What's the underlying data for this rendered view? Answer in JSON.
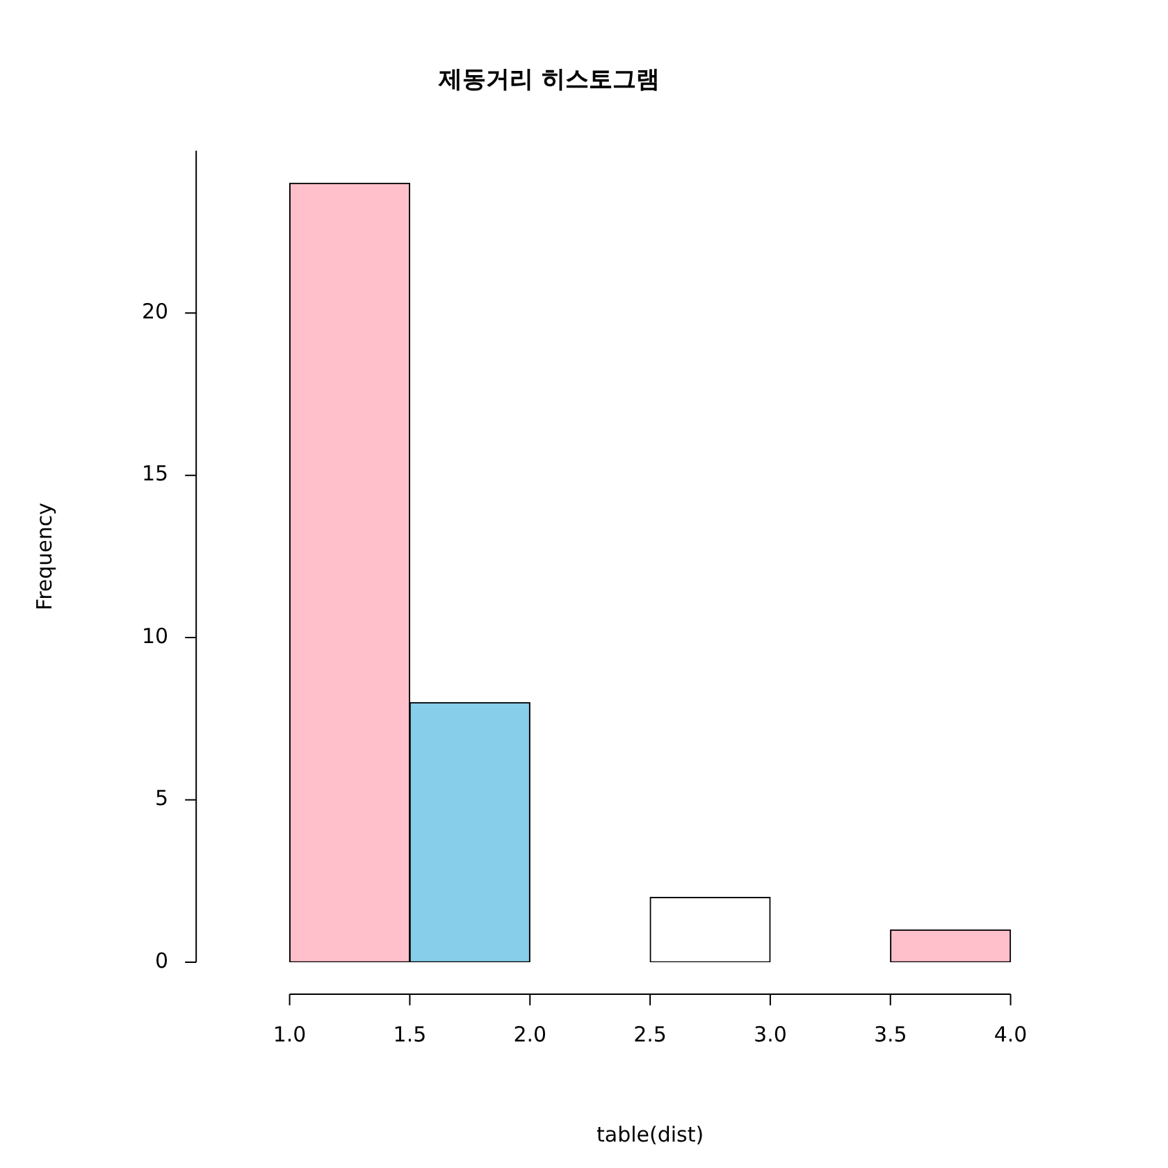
{
  "chart_data": {
    "type": "histogram",
    "title": "제동거리 히스토그램",
    "xlabel": "table(dist)",
    "ylabel": "Frequency",
    "bins": [
      1.0,
      1.5,
      2.0,
      2.5,
      3.0,
      3.5,
      4.0
    ],
    "values": [
      24,
      8,
      0,
      2,
      0,
      1
    ],
    "colors": [
      "#ffc0cb",
      "#87ceeb",
      "#ffffff",
      "#ffffff",
      "#ffffff",
      "#ffc0cb"
    ],
    "xlim": [
      1,
      4
    ],
    "ylim": [
      0,
      25
    ],
    "xticks": [
      {
        "value": 1,
        "label": "1.0"
      },
      {
        "value": 1.5,
        "label": "1.5"
      },
      {
        "value": 2,
        "label": "2.0"
      },
      {
        "value": 2.5,
        "label": "2.5"
      },
      {
        "value": 3,
        "label": "3.0"
      },
      {
        "value": 3.5,
        "label": "3.5"
      },
      {
        "value": 4,
        "label": "4.0"
      }
    ],
    "yticks": [
      0,
      5,
      10,
      15,
      20
    ],
    "grid": false,
    "legend": false
  }
}
